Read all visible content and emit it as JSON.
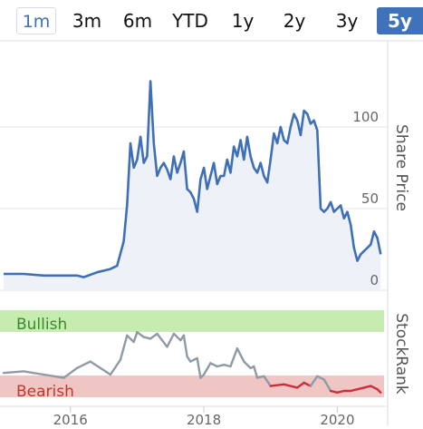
{
  "tabs": [
    {
      "label": "1m"
    },
    {
      "label": "3m"
    },
    {
      "label": "6m"
    },
    {
      "label": "YTD"
    },
    {
      "label": "1y"
    },
    {
      "label": "2y"
    },
    {
      "label": "3y"
    },
    {
      "label": "5y"
    }
  ],
  "selected_tab": "5y",
  "colors": {
    "price_line": "#3f6fb5",
    "price_fill": "#eef2f8",
    "bullish_band": "#c6ecb0",
    "bearish_band": "#efc6c4",
    "bullish_text": "#3a8a2e",
    "bearish_text": "#c0392b",
    "rank_gray": "#8f9aa6",
    "rank_red": "#cc2f3c",
    "grid": "#e4e6ea",
    "axis_text": "#666666"
  },
  "chart_data": [
    {
      "type": "area",
      "ylabel": "Share Price",
      "y_ticks": [
        "0",
        "50",
        "100"
      ],
      "ylim": [
        0,
        150
      ],
      "xlim": [
        2015.0,
        2020.7
      ],
      "grid": true,
      "series": [
        {
          "x": [
            2015.0,
            2015.3,
            2015.6,
            2015.9,
            2016.1,
            2016.2,
            2016.4,
            2016.6,
            2016.7,
            2016.8,
            2016.85,
            2016.9,
            2016.95,
            2017.0,
            2017.05,
            2017.1,
            2017.15,
            2017.2,
            2017.25,
            2017.3,
            2017.35,
            2017.4,
            2017.45,
            2017.5,
            2017.55,
            2017.6,
            2017.65,
            2017.7,
            2017.75,
            2017.8,
            2017.85,
            2017.9,
            2017.95,
            2018.0,
            2018.05,
            2018.1,
            2018.15,
            2018.2,
            2018.25,
            2018.3,
            2018.35,
            2018.4,
            2018.45,
            2018.5,
            2018.55,
            2018.6,
            2018.65,
            2018.7,
            2018.75,
            2018.8,
            2018.85,
            2018.9,
            2018.95,
            2019.0,
            2019.05,
            2019.1,
            2019.15,
            2019.2,
            2019.25,
            2019.3,
            2019.35,
            2019.4,
            2019.45,
            2019.5,
            2019.55,
            2019.6,
            2019.65,
            2019.7,
            2019.75,
            2019.8,
            2019.85,
            2019.9,
            2019.95,
            2020.0,
            2020.05,
            2020.1,
            2020.15,
            2020.2,
            2020.25,
            2020.3,
            2020.35,
            2020.4,
            2020.45,
            2020.5,
            2020.55,
            2020.6,
            2020.65
          ],
          "values": [
            10,
            10,
            9,
            9,
            9,
            8,
            11,
            13,
            15,
            30,
            52,
            90,
            75,
            80,
            94,
            78,
            82,
            128,
            90,
            70,
            75,
            78,
            74,
            68,
            82,
            72,
            78,
            85,
            62,
            60,
            56,
            48,
            68,
            75,
            62,
            70,
            78,
            65,
            70,
            70,
            80,
            72,
            88,
            82,
            92,
            80,
            94,
            82,
            75,
            72,
            78,
            70,
            66,
            80,
            96,
            90,
            100,
            92,
            90,
            100,
            108,
            104,
            95,
            110,
            108,
            102,
            104,
            98,
            50,
            48,
            50,
            54,
            48,
            50,
            52,
            44,
            48,
            40,
            26,
            18,
            22,
            24,
            26,
            28,
            36,
            32,
            22
          ]
        }
      ]
    },
    {
      "type": "line",
      "ylabel": "StockRank",
      "bands": [
        "Bullish",
        "Bearish"
      ],
      "x_ticks": [
        "2016",
        "2018",
        "2020"
      ],
      "x_tick_values": [
        2016,
        2018,
        2020
      ],
      "xlim": [
        2015.0,
        2020.7
      ],
      "ylim": [
        0,
        100
      ],
      "series": [
        {
          "x": [
            2015.0,
            2015.3,
            2015.6,
            2015.9,
            2016.1,
            2016.2,
            2016.3,
            2016.45,
            2016.6,
            2016.75,
            2016.85,
            2016.95,
            2017.0,
            2017.1,
            2017.2,
            2017.3,
            2017.45,
            2017.55,
            2017.65,
            2017.7,
            2017.75,
            2017.8,
            2017.9,
            2017.95,
            2018.0,
            2018.1,
            2018.2,
            2018.3,
            2018.4,
            2018.5,
            2018.6,
            2018.7,
            2018.75,
            2018.8,
            2018.9,
            2019.0,
            2019.2,
            2019.4,
            2019.5,
            2019.6,
            2019.7,
            2019.8,
            2019.9,
            2020.0,
            2020.1,
            2020.2,
            2020.3,
            2020.4,
            2020.5,
            2020.6,
            2020.65
          ],
          "values": [
            32,
            34,
            30,
            26,
            38,
            42,
            46,
            38,
            30,
            48,
            78,
            70,
            82,
            76,
            74,
            80,
            64,
            80,
            72,
            78,
            52,
            46,
            50,
            26,
            30,
            44,
            40,
            42,
            40,
            62,
            46,
            38,
            40,
            26,
            28,
            16,
            18,
            14,
            20,
            16,
            28,
            24,
            10,
            8,
            10,
            10,
            12,
            14,
            16,
            12,
            8
          ],
          "threshold": 22
        }
      ]
    }
  ]
}
